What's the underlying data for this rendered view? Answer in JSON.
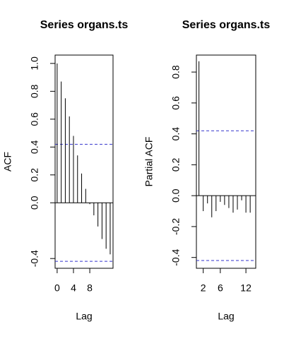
{
  "chart_data": [
    {
      "type": "acf",
      "title": "Series  organs.ts",
      "xlabel": "Lag",
      "ylabel": "ACF",
      "x": [
        0,
        1,
        2,
        3,
        4,
        5,
        6,
        7,
        8,
        9,
        10,
        11,
        12,
        13
      ],
      "values": [
        1.0,
        0.87,
        0.75,
        0.62,
        0.48,
        0.34,
        0.21,
        0.1,
        -0.01,
        -0.09,
        -0.17,
        -0.26,
        -0.33,
        -0.37
      ],
      "color": "#000000",
      "ci_lines": [
        0.42,
        -0.42
      ],
      "ci_color": "#3333cc",
      "xlim": [
        -0.5,
        13.7
      ],
      "xticks": [
        0,
        4,
        8
      ],
      "ylim": [
        -0.47,
        1.06
      ],
      "yticks": [
        -0.4,
        {
          "value": 0,
          "label": "0.0"
        },
        0.2,
        0.4,
        0.6,
        0.8,
        {
          "value": 1,
          "label": "1.0"
        }
      ]
    },
    {
      "type": "acf",
      "title": "Series  organs.ts",
      "xlabel": "Lag",
      "ylabel": "Partial ACF",
      "x": [
        1,
        2,
        3,
        4,
        5,
        6,
        7,
        8,
        9,
        10,
        11,
        12,
        13
      ],
      "values": [
        0.87,
        -0.1,
        -0.05,
        -0.14,
        -0.1,
        -0.04,
        -0.06,
        -0.08,
        -0.11,
        -0.09,
        -0.03,
        -0.11,
        -0.11
      ],
      "color": "#000000",
      "ci_lines": [
        0.42,
        -0.42
      ],
      "ci_color": "#3333cc",
      "xlim": [
        0.4,
        14.3
      ],
      "xticks": [
        2,
        6,
        12
      ],
      "ylim": [
        -0.47,
        0.91
      ],
      "yticks": [
        -0.4,
        -0.2,
        {
          "value": 0,
          "label": "0.0"
        },
        0.2,
        0.4,
        0.6,
        0.8
      ]
    }
  ]
}
